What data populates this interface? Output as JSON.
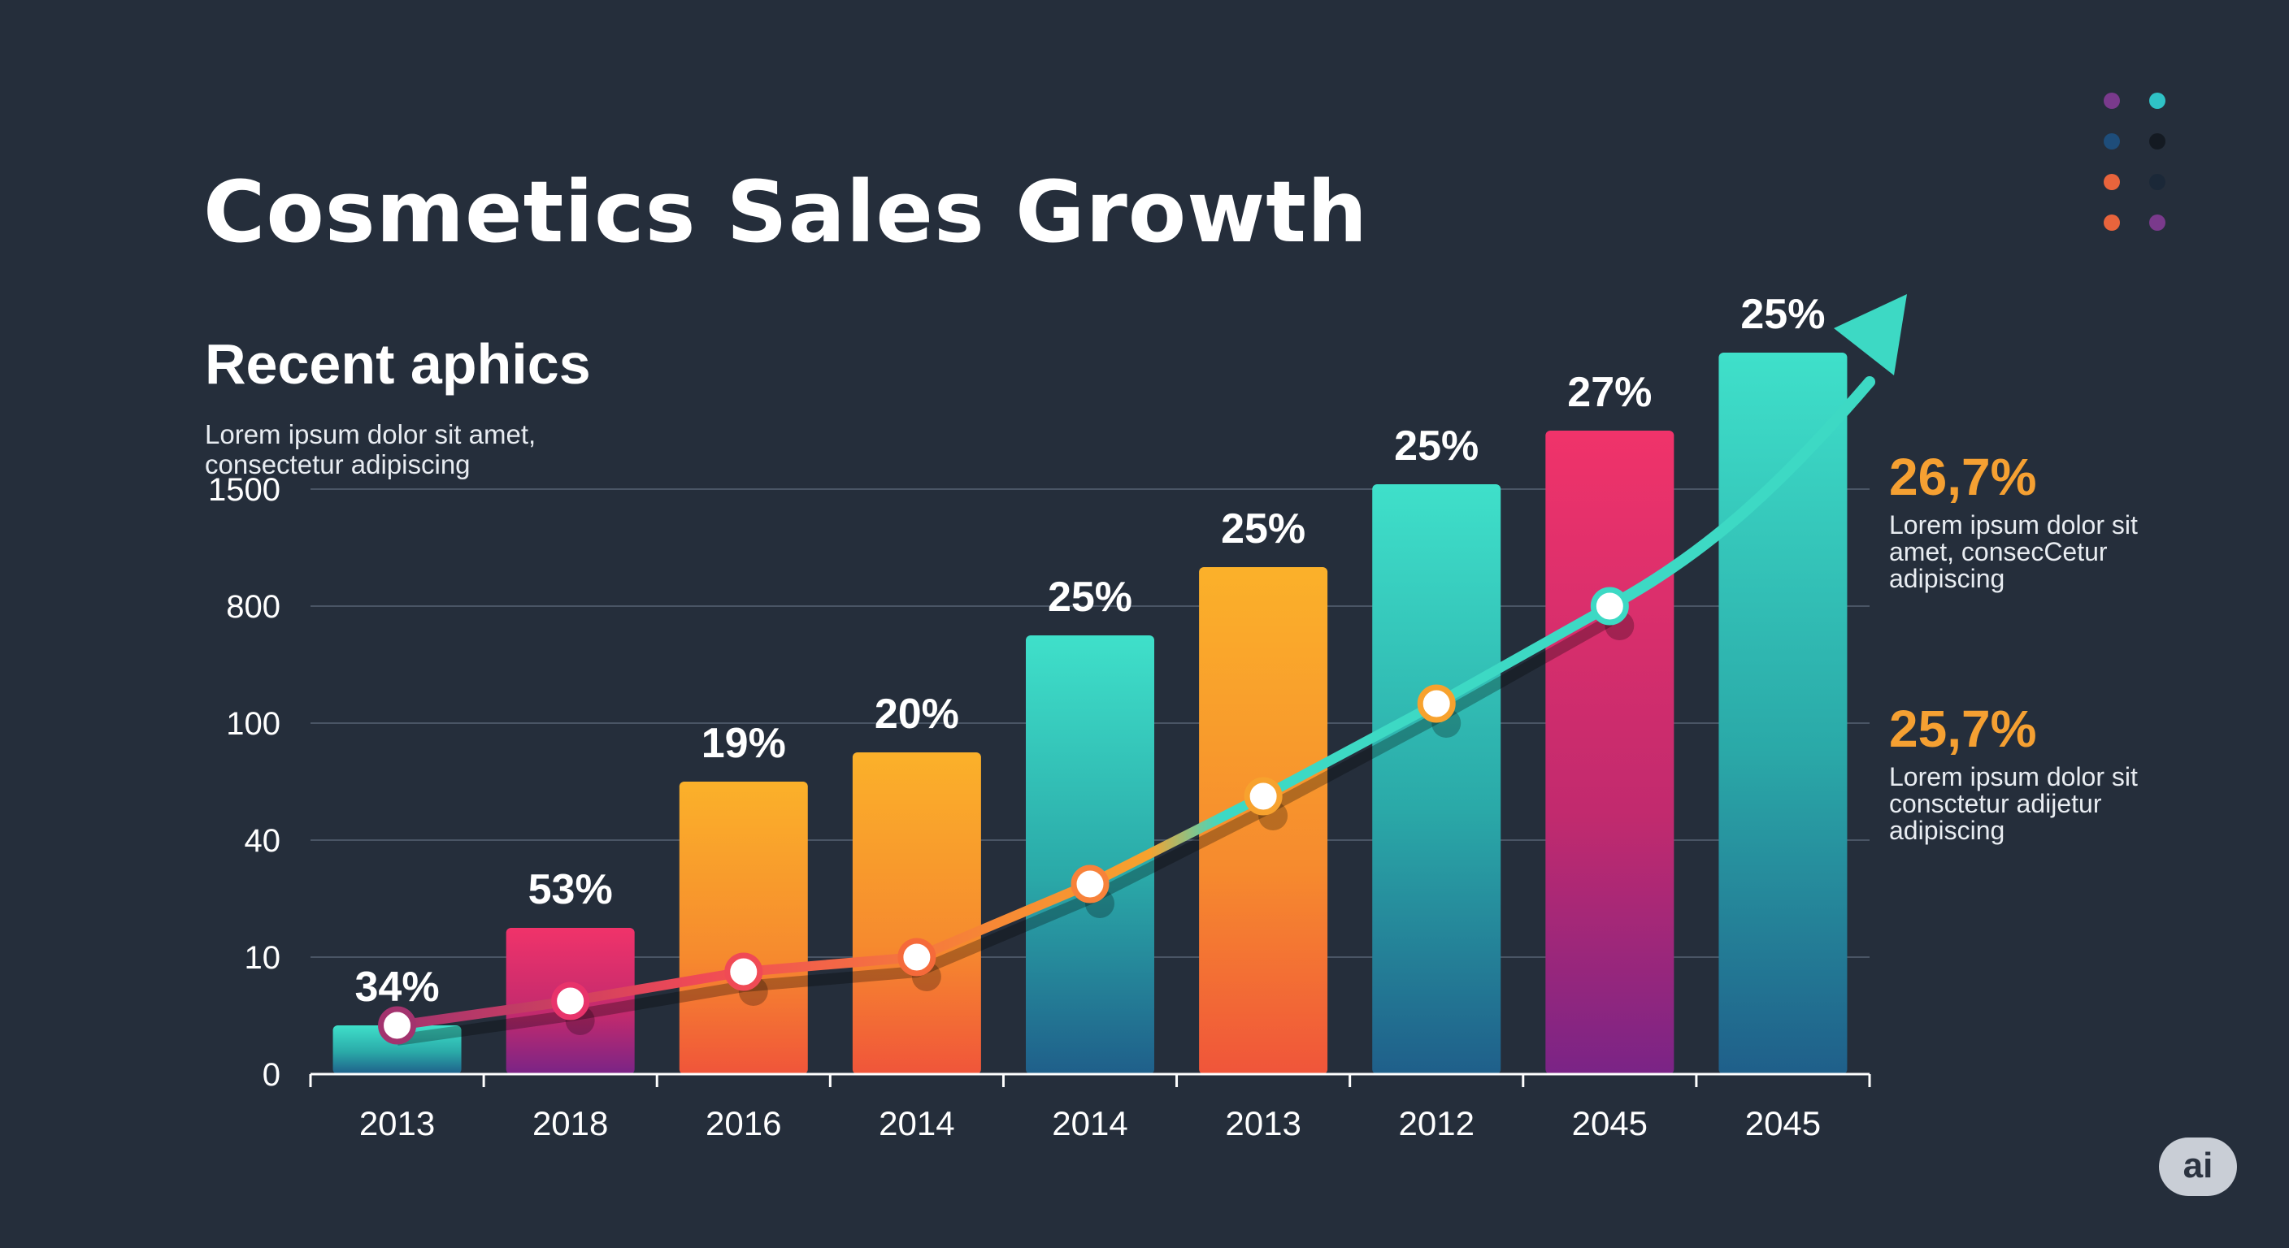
{
  "title": "Cosmetics Sales Growth",
  "subtitle": "Recent aphics",
  "description": [
    "Lorem ipsum dolor sit amet,",
    "consectetur adipiscing"
  ],
  "notes": [
    {
      "value": "26,7%",
      "lines": [
        "Lorem ipsum dolor sit",
        "amet, consecCetur",
        "adipiscing"
      ]
    },
    {
      "value": "25,7%",
      "lines": [
        "Lorem ipsum dolor sit",
        "consctetur adijetur",
        "adipiscing"
      ]
    }
  ],
  "badge": "ai",
  "colors": {
    "background": "#252e3b",
    "teal": "#3dd9c4",
    "pink": "#e8336b",
    "orange": "#f7a22e",
    "line_dark": "#3b2a2e",
    "accent_orange": "#f5a032"
  },
  "decor_dots": [
    {
      "color": "#7a3a8c"
    },
    {
      "color": "#2fc2c6"
    },
    {
      "color": "#1e4d7a"
    },
    {
      "color": "#141a22"
    },
    {
      "color": "#e8643c"
    },
    {
      "color": "#1b2838"
    },
    {
      "color": "#e8643c"
    },
    {
      "color": "#7a3a8c"
    }
  ],
  "chart_data": {
    "type": "bar",
    "categories": [
      "2013",
      "2018",
      "2016",
      "2014",
      "2014",
      "2013",
      "2012",
      "2045",
      "2045"
    ],
    "y_ticks": [
      "0",
      "10",
      "40",
      "100",
      "800",
      "1500"
    ],
    "values": [
      0.5,
      1.5,
      3,
      3.3,
      4.5,
      5.2,
      6.05,
      6.6,
      7.4
    ],
    "value_unit": "tick index (non-linear tick labels)",
    "labels": [
      "34%",
      "53%",
      "19%",
      "20%",
      "25%",
      "25%",
      "25%",
      "27%",
      "25%"
    ],
    "bar_styles": [
      "teal",
      "pink",
      "orange",
      "orange",
      "teal",
      "orange",
      "teal",
      "pink",
      "teal"
    ],
    "trend_line": [
      0.5,
      0.75,
      1.05,
      1.2,
      1.95,
      2.85,
      3.8,
      4.8,
      7.5
    ],
    "grid": true,
    "legend": "none"
  }
}
